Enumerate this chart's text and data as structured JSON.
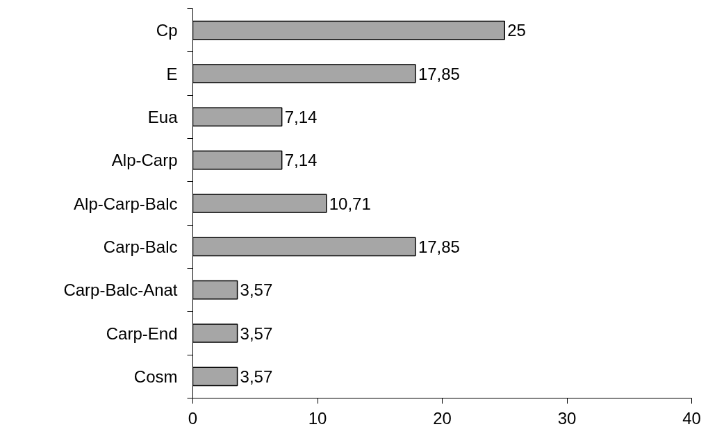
{
  "chart_data": {
    "type": "bar",
    "orientation": "horizontal",
    "categories": [
      "Cp",
      "E",
      "Eua",
      "Alp-Carp",
      "Alp-Carp-Balc",
      "Carp-Balc",
      "Carp-Balc-Anat",
      "Carp-End",
      "Cosm"
    ],
    "values": [
      25,
      17.85,
      7.14,
      7.14,
      10.71,
      17.85,
      3.57,
      3.57,
      3.57
    ],
    "value_labels": [
      "25",
      "17,85",
      "7,14",
      "7,14",
      "10,71",
      "17,85",
      "3,57",
      "3,57",
      "3,57"
    ],
    "color": "#a6a6a6",
    "xlim": [
      0,
      40
    ],
    "xticks": [
      0,
      10,
      20,
      30,
      40
    ],
    "grid": false
  }
}
